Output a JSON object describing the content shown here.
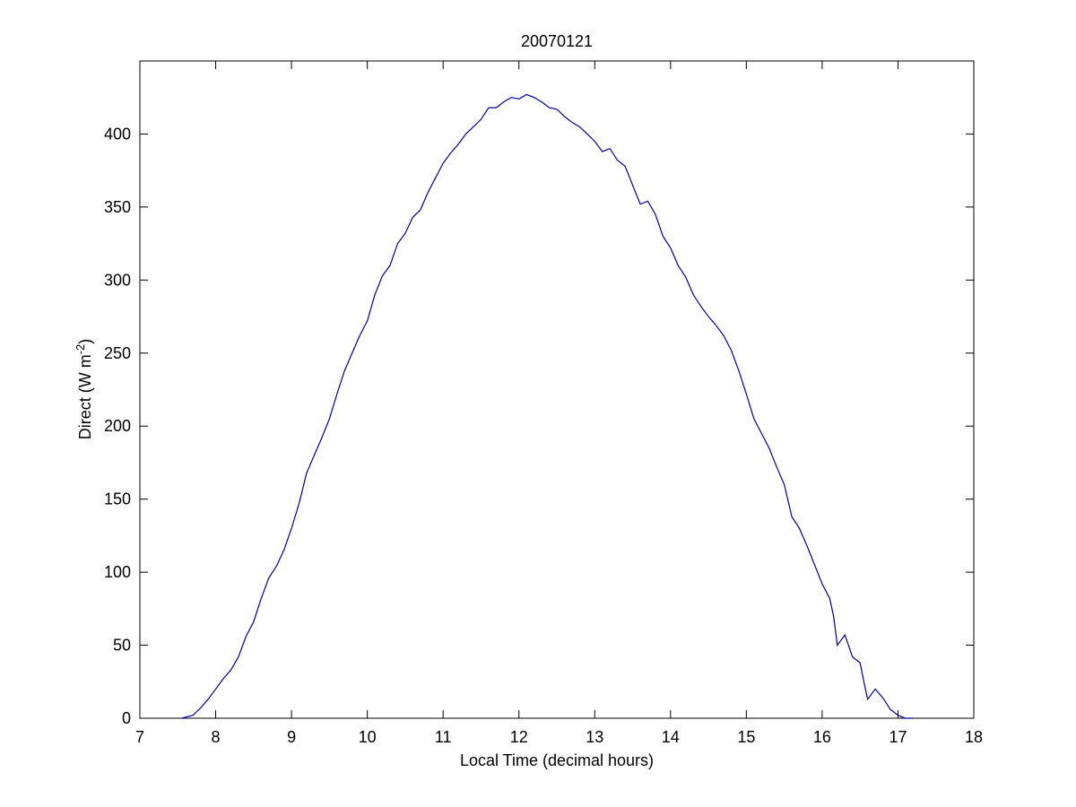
{
  "chart_data": {
    "type": "line",
    "title": "20070121",
    "xlabel": "Local Time (decimal hours)",
    "ylabel": [
      "Direct (W m",
      "-2",
      ")"
    ],
    "xlim": [
      7,
      18
    ],
    "xticks": [
      7,
      8,
      9,
      10,
      11,
      12,
      13,
      14,
      15,
      16,
      17,
      18
    ],
    "ylim": [
      0,
      450
    ],
    "yticks": [
      0,
      50,
      100,
      150,
      200,
      250,
      300,
      350,
      400
    ],
    "grid": false,
    "series": [
      {
        "color": "#0000a0",
        "x": [
          7.55,
          7.7,
          7.8,
          7.9,
          8.0,
          8.1,
          8.2,
          8.3,
          8.4,
          8.5,
          8.6,
          8.7,
          8.8,
          8.9,
          9.0,
          9.1,
          9.2,
          9.3,
          9.4,
          9.5,
          9.6,
          9.7,
          9.8,
          9.9,
          10.0,
          10.1,
          10.2,
          10.3,
          10.4,
          10.5,
          10.6,
          10.7,
          10.8,
          10.9,
          11.0,
          11.1,
          11.2,
          11.3,
          11.4,
          11.5,
          11.6,
          11.7,
          11.8,
          11.9,
          12.0,
          12.1,
          12.2,
          12.3,
          12.4,
          12.5,
          12.6,
          12.7,
          12.8,
          12.9,
          13.0,
          13.1,
          13.2,
          13.3,
          13.4,
          13.5,
          13.6,
          13.7,
          13.8,
          13.9,
          14.0,
          14.1,
          14.2,
          14.3,
          14.4,
          14.5,
          14.6,
          14.7,
          14.8,
          14.9,
          15.0,
          15.1,
          15.2,
          15.3,
          15.4,
          15.5,
          15.6,
          15.7,
          15.8,
          15.9,
          16.0,
          16.1,
          16.15,
          16.2,
          16.3,
          16.4,
          16.5,
          16.55,
          16.6,
          16.7,
          16.8,
          16.9,
          17.0,
          17.1,
          17.2
        ],
        "values": [
          0,
          2,
          7,
          13,
          20,
          27,
          33,
          42,
          56,
          66,
          82,
          96,
          104,
          115,
          130,
          147,
          168,
          180,
          192,
          205,
          222,
          238,
          250,
          262,
          272,
          290,
          303,
          310,
          325,
          332,
          343,
          348,
          360,
          370,
          380,
          387,
          393,
          400,
          405,
          410,
          418,
          418,
          422,
          425,
          424,
          427,
          425,
          422,
          418,
          417,
          412,
          408,
          405,
          400,
          395,
          388,
          390,
          382,
          378,
          365,
          352,
          354,
          345,
          330,
          322,
          310,
          302,
          290,
          282,
          275,
          269,
          262,
          252,
          238,
          222,
          205,
          195,
          185,
          172,
          160,
          138,
          130,
          118,
          105,
          92,
          82,
          70,
          50,
          57,
          42,
          38,
          25,
          13,
          20,
          14,
          6,
          2,
          0,
          0
        ]
      }
    ]
  }
}
